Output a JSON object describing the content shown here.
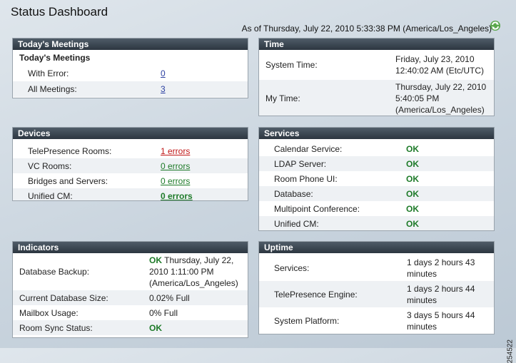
{
  "page": {
    "title": "Status Dashboard",
    "as_of": "As of Thursday, July 22, 2010 5:33:38 PM (America/Los_Angeles)",
    "figure_id": "254522"
  },
  "meetings": {
    "title": "Today's Meetings",
    "subheading": "Today's Meetings",
    "rows": [
      {
        "label": "With Error:",
        "value": "0"
      },
      {
        "label": "All Meetings:",
        "value": "3"
      }
    ]
  },
  "time": {
    "title": "Time",
    "system_label": "System Time:",
    "system_value": [
      "Friday, July 23, 2010",
      "12:40:02 AM (Etc/UTC)"
    ],
    "my_label": "My Time:",
    "my_value": [
      "Thursday, July 22, 2010",
      "5:40:05 PM",
      "(America/Los_Angeles)"
    ]
  },
  "devices": {
    "title": "Devices",
    "rows": [
      {
        "label": "TelePresence Rooms:",
        "value": "1 errors"
      },
      {
        "label": "VC Rooms:",
        "value": "0 errors"
      },
      {
        "label": "Bridges and Servers:",
        "value": "0 errors"
      },
      {
        "label": "Unified CM:",
        "value": "0 errors"
      }
    ]
  },
  "services": {
    "title": "Services",
    "rows": [
      {
        "label": "Calendar Service:",
        "value": "OK"
      },
      {
        "label": "LDAP Server:",
        "value": "OK"
      },
      {
        "label": "Room Phone UI:",
        "value": "OK"
      },
      {
        "label": "Database:",
        "value": "OK"
      },
      {
        "label": "Multipoint Conference:",
        "value": "OK"
      },
      {
        "label": "Unified CM:",
        "value": "OK"
      }
    ]
  },
  "indicators": {
    "title": "Indicators",
    "backup_label": "Database Backup:",
    "backup_status": "OK",
    "backup_value": [
      " Thursday, July 22,",
      "2010 1:11:00 PM",
      "(America/Los_Angeles)"
    ],
    "rows": [
      {
        "label": "Current Database Size:",
        "value": "0.02% Full"
      },
      {
        "label": "Mailbox Usage:",
        "value": "0% Full"
      },
      {
        "label": "Room Sync Status:",
        "value": "OK"
      }
    ]
  },
  "uptime": {
    "title": "Uptime",
    "rows": [
      {
        "label": "Services:",
        "value": [
          "1 days 2 hours 43",
          "minutes"
        ]
      },
      {
        "label": "TelePresence Engine:",
        "value": [
          "1 days 2 hours 44",
          "minutes"
        ]
      },
      {
        "label": "System Platform:",
        "value": [
          "3 days 5 hours 44",
          "minutes"
        ]
      }
    ]
  }
}
